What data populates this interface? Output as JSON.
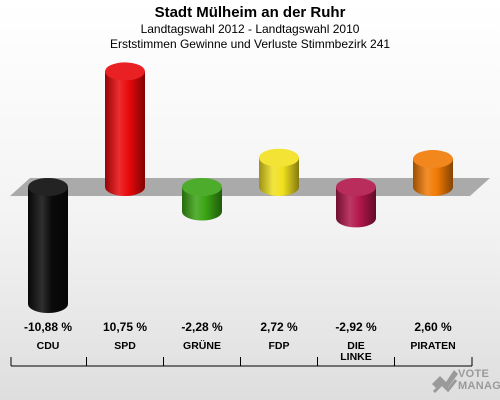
{
  "header": {
    "title": "Stadt Mülheim an der Ruhr",
    "subtitle1": "Landtagswahl 2012 - Landtagswahl 2010",
    "subtitle2": "Erststimmen Gewinne und Verluste Stimmbezirk 241"
  },
  "chart_data": {
    "type": "bar",
    "categories": [
      "CDU",
      "SPD",
      "GRÜNE",
      "FDP",
      "DIE LINKE",
      "PIRATEN"
    ],
    "values": [
      -10.88,
      10.75,
      -2.28,
      2.72,
      -2.92,
      2.6
    ],
    "value_labels": [
      "-10,88 %",
      "10,75 %",
      "-2,28 %",
      "2,72 %",
      "-2,92 %",
      "2,60 %"
    ],
    "colors": [
      "#0a0a0a",
      "#e8080a",
      "#3aa314",
      "#f0e01e",
      "#b0164a",
      "#f07a05"
    ],
    "ylim": [
      -11.5,
      11.5
    ],
    "grid": false,
    "legend": "none"
  },
  "branding": {
    "line1": "VOTE",
    "line2": "MANAGER",
    "icon": "vote-manager-logo-icon"
  }
}
